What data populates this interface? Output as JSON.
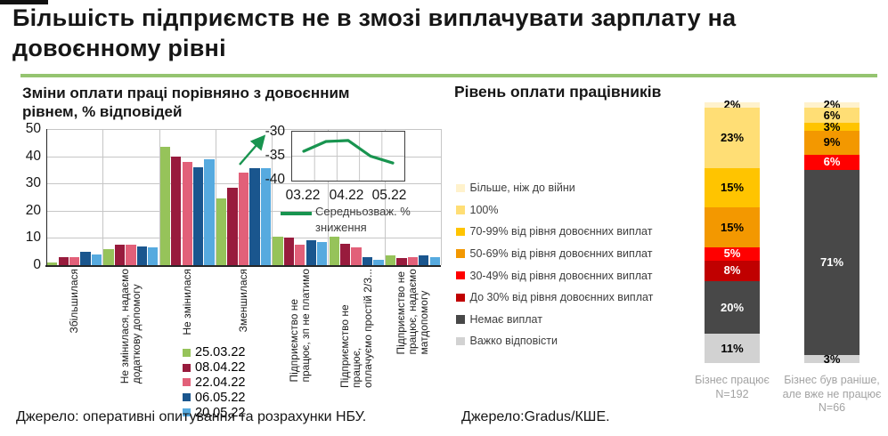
{
  "page": {
    "title": "Більшість підприємств не в змозі виплачувати зарплату на\nдовоєнному рівні",
    "accent_green": "#95C470"
  },
  "left_panel": {
    "subtitle": "Зміни оплати праці порівняно з довоєнним\nрівнем, % відповідей",
    "source": "Джерело: оперативні опитування та розрахунки НБУ."
  },
  "right_panel": {
    "title": "Рівень оплати працівників",
    "source": "Джерело:Gradus/КШЕ."
  },
  "chart_data": [
    {
      "id": "wage-change-grouped-bar",
      "type": "bar",
      "title": "Зміни оплати праці порівняно з довоєнним рівнем, % відповідей",
      "ylim": [
        0,
        50
      ],
      "yticks": [
        0,
        10,
        20,
        30,
        40,
        50
      ],
      "grid": true,
      "legend_position": "bottom-center",
      "categories": [
        "Збільшилася",
        "Не змінилася, надаємо\nдодаткову допомогу",
        "Не змінилася",
        "Зменшилася",
        "Підприємство не\nпрацює, зп не платимо",
        "Підприємство не\nпрацює,\nоплачуємо простій 2/3...",
        "Підприємство не\nпрацює, надаємо\nматдопомогу"
      ],
      "series": [
        {
          "name": "25.03.22",
          "color": "#96C35A",
          "values": [
            1,
            6,
            43.5,
            24.5,
            10.5,
            10.5,
            3.5
          ]
        },
        {
          "name": "08.04.22",
          "color": "#981B3D",
          "values": [
            3,
            7.5,
            40,
            28.5,
            10,
            8,
            2.5
          ]
        },
        {
          "name": "22.04.22",
          "color": "#E26079",
          "values": [
            3,
            7.5,
            38,
            34,
            7.5,
            6.5,
            3
          ]
        },
        {
          "name": "06.05.22",
          "color": "#1A568E",
          "values": [
            5,
            7,
            36,
            35.5,
            9,
            3,
            3.5
          ]
        },
        {
          "name": "20.05.22",
          "color": "#56AADF",
          "values": [
            4,
            6.5,
            39,
            35.5,
            8.5,
            2,
            3
          ]
        }
      ]
    },
    {
      "id": "weighted-decline-inset",
      "type": "line",
      "x": [
        "25.03.22",
        "08.04.22",
        "22.04.22",
        "06.05.22",
        "20.05.22"
      ],
      "xticks_shown": [
        "03.22",
        "04.22",
        "05.22"
      ],
      "values": [
        -34,
        -32,
        -31.8,
        -35,
        -36.4
      ],
      "ylim": [
        -40,
        -30
      ],
      "yticks": [
        -30,
        -35,
        -40
      ],
      "legend": "Середньозваж. %\nзниження",
      "line_color": "#18944F"
    },
    {
      "id": "pay-level-stacked",
      "type": "bar",
      "subtype": "stacked",
      "title": "Рівень оплати працівників",
      "categories": [
        "Бізнес працює\nN=192",
        "Бізнес був раніше,\nале вже не працює\nN=66"
      ],
      "series": [
        {
          "name": "Більше, ніж до війни",
          "color": "#FFF2CC",
          "values": [
            2,
            2
          ]
        },
        {
          "name": "100%",
          "color": "#FFDE75",
          "values": [
            23,
            6
          ]
        },
        {
          "name": "70-99% від рівня довоєнних виплат",
          "color": "#FFC400",
          "values": [
            15,
            3
          ]
        },
        {
          "name": "50-69% від рівня довоєнних виплат",
          "color": "#F39800",
          "values": [
            15,
            9
          ]
        },
        {
          "name": "30-49% від рівня довоєнних виплат",
          "color": "#FF0000",
          "values": [
            5,
            6
          ]
        },
        {
          "name": "До 30% від рівня довоєнних виплат",
          "color": "#C00000",
          "values": [
            8,
            0
          ]
        },
        {
          "name": "Немає виплат",
          "color": "#484848",
          "values": [
            20,
            71
          ]
        },
        {
          "name": "Важко відповісти",
          "color": "#D2D2D2",
          "values": [
            11,
            3
          ]
        }
      ]
    }
  ]
}
